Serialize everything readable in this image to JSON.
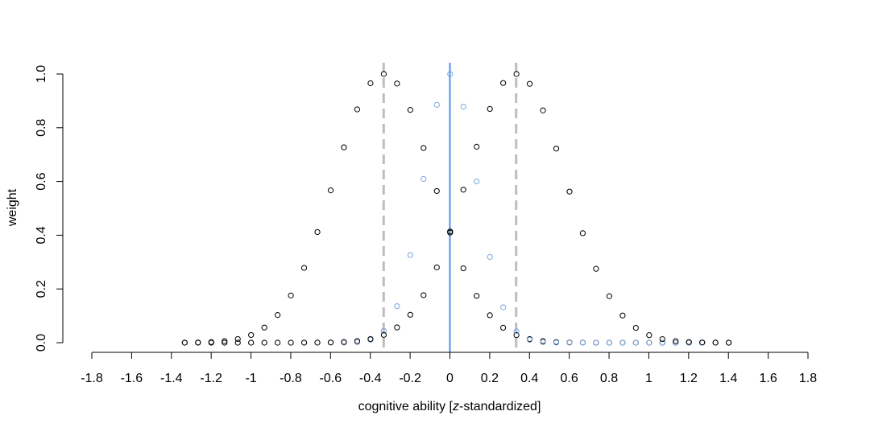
{
  "chart_data": {
    "type": "scatter",
    "xlabel_prefix": "cognitive ability [",
    "xlabel_italic": "z",
    "xlabel_suffix": "-standardized]",
    "ylabel": "weight",
    "xlim": [
      -1.8,
      1.8
    ],
    "ylim": [
      0,
      1
    ],
    "x_ticks": [
      -1.8,
      -1.6,
      -1.4,
      -1.2,
      -1,
      -0.8,
      -0.6,
      -0.4,
      -0.2,
      0,
      0.2,
      0.4,
      0.6,
      0.8,
      1,
      1.2,
      1.4,
      1.6,
      1.8
    ],
    "x_tick_labels": [
      "-1.8",
      "-1.6",
      "-1.4",
      "-1.2",
      "-1",
      "-0.8",
      "-0.6",
      "-0.4",
      "-0.2",
      "0",
      "0.2",
      "0.4",
      "0.6",
      "0.8",
      "1",
      "1.2",
      "1.4",
      "1.6",
      "1.8"
    ],
    "y_ticks": [
      0,
      0.2,
      0.4,
      0.6,
      0.8,
      1
    ],
    "y_tick_labels": [
      "0.0",
      "0.2",
      "0.4",
      "0.6",
      "0.8",
      "1.0"
    ],
    "grid": false,
    "legend": "none",
    "point_range": [
      -1.333,
      1.4
    ],
    "point_step": 0.0667,
    "series": [
      {
        "center": -0.333,
        "sd": 0.25,
        "color": "#000000"
      },
      {
        "center": 0.0,
        "sd": 0.133,
        "color": "#7aa6e0"
      },
      {
        "center": 0.333,
        "sd": 0.25,
        "color": "#000000"
      }
    ],
    "vlines": [
      {
        "x": -0.333,
        "color": "#bdbdbd",
        "style": "dashed"
      },
      {
        "x": 0.0,
        "color": "#4d8fe6",
        "style": "solid"
      },
      {
        "x": 0.333,
        "color": "#bdbdbd",
        "style": "dashed"
      }
    ]
  }
}
